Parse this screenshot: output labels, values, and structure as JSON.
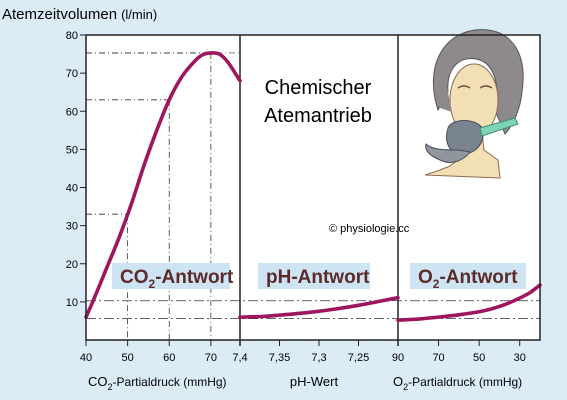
{
  "chart_data": {
    "type": "line",
    "title": "Chemischer Atemantrieb",
    "title_lines": [
      "Chemischer",
      "Atemantrieb"
    ],
    "ylabel": "Atemzeitvolumen",
    "ylabel_unit": "(l/min)",
    "ylim": [
      0,
      80
    ],
    "yticks": [
      "80",
      "70",
      "60",
      "50",
      "40",
      "30",
      "20",
      "10"
    ],
    "grid": false,
    "copyright": "© physiologie.cc",
    "panels": [
      {
        "name": "co2",
        "label_main": "CO",
        "label_sub": "2",
        "label_rest": "-Antwort",
        "xlabel_main": "CO",
        "xlabel_sub": "2",
        "xlabel_rest": "-Partialdruck (mmHg)",
        "xrange": [
          40,
          77
        ],
        "xticks": [
          "40",
          "50",
          "60",
          "70",
          "7,4"
        ],
        "xtick_values": [
          40,
          50,
          60,
          70,
          77
        ],
        "x": [
          40,
          42,
          45,
          48,
          51,
          54,
          57,
          60,
          63,
          66,
          68,
          70,
          72,
          74,
          77
        ],
        "y": [
          6,
          11,
          19,
          27,
          36,
          46,
          55,
          63,
          69,
          73,
          74.8,
          75.3,
          75,
          73,
          68
        ]
      },
      {
        "name": "ph",
        "label_main": "pH-Antwort",
        "xlabel_main": "pH-Wert",
        "xrange": [
          7.4,
          7.2
        ],
        "xticks": [
          "7,35",
          "7,3",
          "7,25"
        ],
        "xtick_values": [
          7.35,
          7.3,
          7.25
        ],
        "x": [
          7.4,
          7.37,
          7.34,
          7.31,
          7.28,
          7.25,
          7.22,
          7.2
        ],
        "y": [
          6,
          6.2,
          6.7,
          7.3,
          8.1,
          9.1,
          10.3,
          11.1
        ]
      },
      {
        "name": "o2",
        "label_main": "O",
        "label_sub": "2",
        "label_rest": "-Antwort",
        "xlabel_main": "O",
        "xlabel_sub": "2",
        "xlabel_rest": "-Partialdruck (mmHg)",
        "xrange": [
          90,
          20
        ],
        "xticks": [
          "90",
          "70",
          "50",
          "30"
        ],
        "xtick_values": [
          90,
          70,
          50,
          30
        ],
        "x": [
          90,
          80,
          70,
          60,
          50,
          45,
          40,
          35,
          30,
          25,
          22,
          20
        ],
        "y": [
          5.2,
          5.5,
          6,
          6.6,
          7.4,
          8,
          8.8,
          9.8,
          11,
          12.4,
          13.6,
          14.4
        ]
      }
    ]
  },
  "colors": {
    "background": "#dcecf7",
    "plot_background": "#ffffff",
    "curve": "#a0155f",
    "label_box": "#cfe4f2",
    "frame": "#222222"
  },
  "icons": {
    "illustration": "person-with-oxygen-mask-icon"
  }
}
